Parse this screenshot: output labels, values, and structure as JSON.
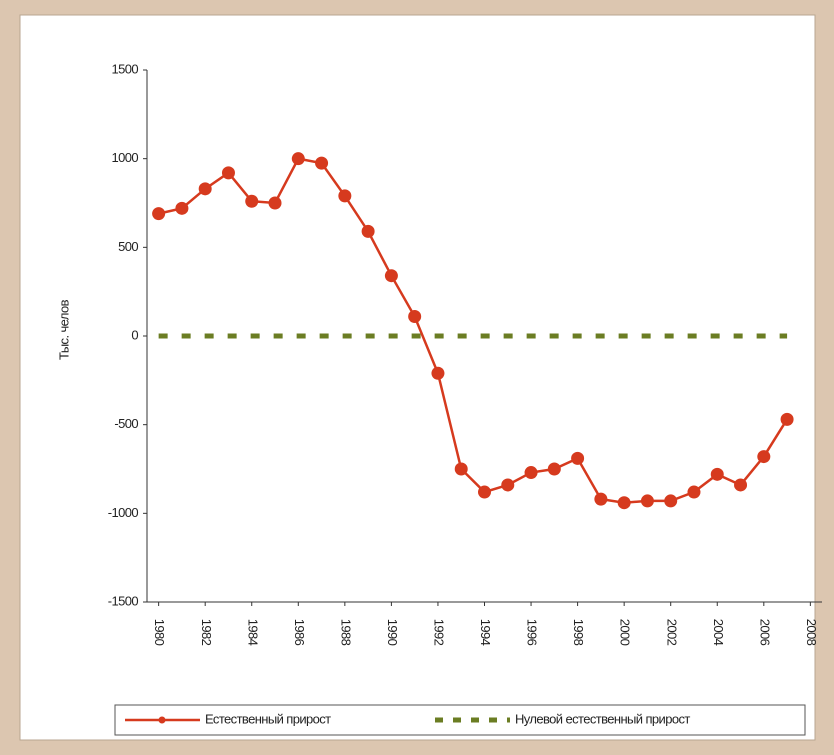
{
  "chart_data": {
    "type": "line",
    "y_label": "Тыс. челов",
    "x": [
      1980,
      1981,
      1982,
      1983,
      1984,
      1985,
      1986,
      1987,
      1988,
      1989,
      1990,
      1991,
      1992,
      1993,
      1994,
      1995,
      1996,
      1997,
      1998,
      1999,
      2000,
      2001,
      2002,
      2003,
      2004,
      2005,
      2006,
      2007
    ],
    "series": [
      {
        "name": "Естественный прирост",
        "color": "#d63a1e",
        "style": "solid",
        "values": [
          690,
          720,
          830,
          920,
          760,
          750,
          1000,
          975,
          790,
          590,
          340,
          110,
          -210,
          -750,
          -880,
          -840,
          -770,
          -750,
          -690,
          -920,
          -940,
          -930,
          -930,
          -880,
          -780,
          -840,
          -680,
          -470
        ]
      },
      {
        "name": "Нулевой естественный прирост",
        "color": "#6b7d23",
        "style": "dashed",
        "values": [
          0,
          0,
          0,
          0,
          0,
          0,
          0,
          0,
          0,
          0,
          0,
          0,
          0,
          0,
          0,
          0,
          0,
          0,
          0,
          0,
          0,
          0,
          0,
          0,
          0,
          0,
          0,
          0
        ]
      }
    ],
    "xlim": [
      1979.5,
      2008.5
    ],
    "xticks": [
      1980,
      1982,
      1984,
      1986,
      1988,
      1990,
      1992,
      1994,
      1996,
      1998,
      2000,
      2002,
      2004,
      2006,
      2008
    ],
    "ylim": [
      -1500,
      1500
    ],
    "yticks": [
      -1500,
      -1000,
      -500,
      0,
      500,
      1000,
      1500
    ],
    "legend": "bottom"
  }
}
